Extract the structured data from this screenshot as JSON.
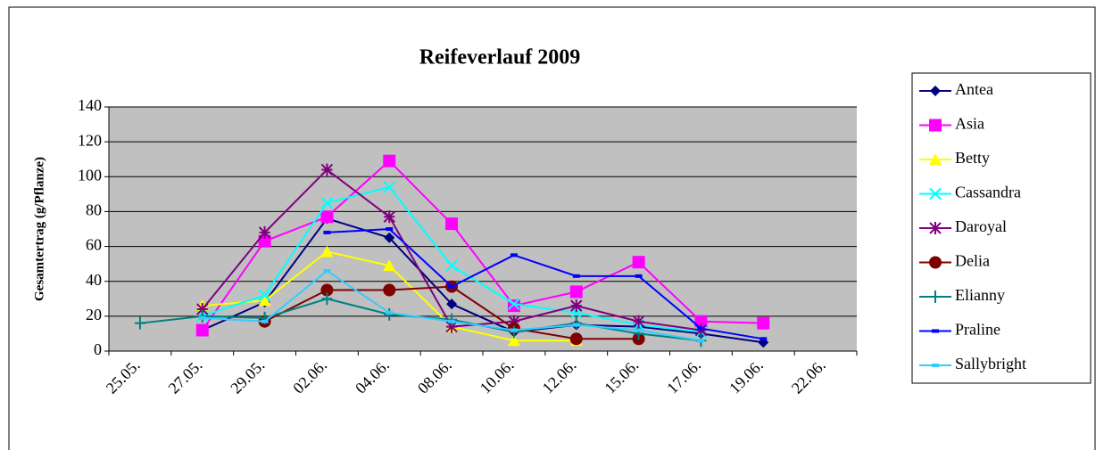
{
  "chart_data": {
    "type": "line",
    "title": "Reifeverlauf  2009",
    "y_label": "Gesamtertrag (g/Pflanze)",
    "categories": [
      "25.05.",
      "27.05.",
      "29.05.",
      "02.06.",
      "04.06.",
      "08.06.",
      "10.06.",
      "12.06.",
      "15.06.",
      "17.06.",
      "19.06.",
      "22.06."
    ],
    "ylim": [
      0,
      140
    ],
    "yticks": [
      0,
      20,
      40,
      60,
      80,
      100,
      120,
      140
    ],
    "grid": true,
    "legend": "right",
    "series": [
      {
        "name": "Antea",
        "color": "#000080",
        "marker": "diamond",
        "values": [
          null,
          12,
          28,
          76,
          65,
          27,
          11,
          15,
          14,
          10,
          5,
          null
        ]
      },
      {
        "name": "Asia",
        "color": "#ff00ff",
        "marker": "square",
        "values": [
          null,
          12,
          63,
          77,
          109,
          73,
          26,
          34,
          51,
          17,
          16,
          null
        ]
      },
      {
        "name": "Betty",
        "color": "#ffff00",
        "marker": "triangle",
        "values": [
          null,
          26,
          29,
          57,
          49,
          14,
          6,
          6,
          null,
          null,
          null,
          null
        ]
      },
      {
        "name": "Cassandra",
        "color": "#00ffff",
        "marker": "x",
        "values": [
          null,
          20,
          32,
          85,
          94,
          49,
          27,
          22,
          15,
          11,
          null,
          null
        ]
      },
      {
        "name": "Daroyal",
        "color": "#800080",
        "marker": "star",
        "values": [
          null,
          24,
          68,
          104,
          77,
          14,
          17,
          26,
          17,
          12,
          null,
          null
        ]
      },
      {
        "name": "Delia",
        "color": "#800000",
        "marker": "circle",
        "values": [
          null,
          null,
          17,
          35,
          35,
          37,
          13,
          7,
          7,
          null,
          null,
          null
        ]
      },
      {
        "name": "Elianny",
        "color": "#008080",
        "marker": "plus",
        "values": [
          16,
          20,
          19,
          30,
          21,
          18,
          11,
          16,
          10,
          6,
          null,
          null
        ]
      },
      {
        "name": "Praline",
        "color": "#0000ff",
        "marker": "dash",
        "values": [
          null,
          null,
          null,
          68,
          70,
          37,
          55,
          43,
          43,
          13,
          7,
          null
        ]
      },
      {
        "name": "Sallybright",
        "color": "#33ccff",
        "marker": "dash",
        "values": [
          null,
          19,
          17,
          46,
          22,
          17,
          12,
          15,
          12,
          6,
          null,
          null
        ]
      }
    ]
  }
}
